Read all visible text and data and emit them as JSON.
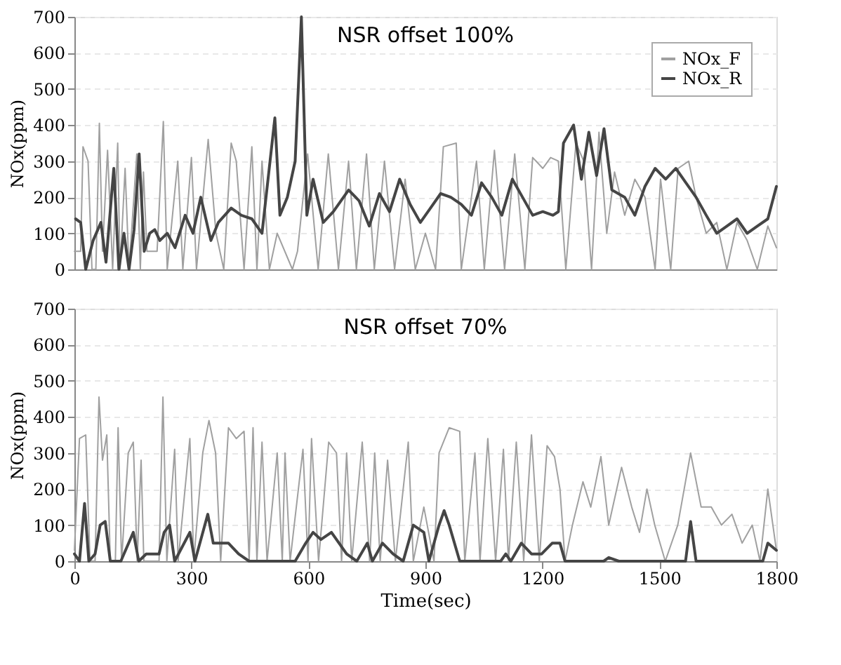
{
  "chart_data": [
    {
      "type": "line",
      "title": "NSR offset 100%",
      "ylabel": "NOx(ppm)",
      "xlim": [
        0,
        1800
      ],
      "xticks": [
        0,
        300,
        600,
        900,
        1200,
        1500,
        1800
      ],
      "ylim": [
        0,
        700
      ],
      "yticks": [
        0,
        100,
        200,
        300,
        400,
        500,
        600,
        700
      ],
      "grid": "y",
      "legend": "top right",
      "tick_labels": "y",
      "series": [
        {
          "name": "NOx_F",
          "color": "#a0a0a0",
          "x": [
            0,
            16,
            22,
            35,
            45,
            55,
            64,
            72,
            85,
            98,
            111,
            117,
            130,
            140,
            160,
            169,
            177,
            186,
            212,
            228,
            238,
            265,
            278,
            300,
            313,
            343,
            363,
            383,
            402,
            415,
            435,
            455,
            468,
            481,
            500,
            520,
            559,
            572,
            598,
            625,
            651,
            677,
            703,
            723,
            749,
            769,
            795,
            821,
            848,
            874,
            900,
            926,
            946,
            979,
            992,
            1031,
            1051,
            1077,
            1103,
            1129,
            1155,
            1175,
            1201,
            1221,
            1241,
            1260,
            1286,
            1306,
            1326,
            1345,
            1365,
            1385,
            1411,
            1437,
            1463,
            1489,
            1503,
            1529,
            1548,
            1575,
            1594,
            1620,
            1647,
            1673,
            1699,
            1725,
            1751,
            1778,
            1800
          ],
          "values": [
            50,
            50,
            340,
            300,
            0,
            0,
            405,
            50,
            330,
            0,
            350,
            0,
            280,
            0,
            320,
            0,
            270,
            50,
            50,
            410,
            0,
            300,
            0,
            310,
            0,
            360,
            100,
            0,
            350,
            300,
            0,
            340,
            0,
            300,
            0,
            100,
            0,
            50,
            320,
            0,
            320,
            0,
            300,
            0,
            320,
            0,
            300,
            0,
            250,
            0,
            100,
            0,
            340,
            350,
            0,
            300,
            0,
            330,
            0,
            320,
            0,
            310,
            280,
            310,
            300,
            0,
            350,
            300,
            0,
            380,
            100,
            270,
            150,
            250,
            200,
            0,
            250,
            0,
            280,
            300,
            200,
            100,
            130,
            0,
            130,
            80,
            0,
            120,
            60
          ]
        },
        {
          "name": "NOx_R",
          "color": "#454545",
          "x": [
            3,
            16,
            29,
            48,
            68,
            81,
            101,
            114,
            127,
            140,
            153,
            166,
            179,
            193,
            206,
            219,
            238,
            258,
            284,
            304,
            324,
            350,
            369,
            402,
            428,
            455,
            481,
            514,
            527,
            546,
            566,
            582,
            596,
            612,
            638,
            664,
            703,
            730,
            756,
            782,
            808,
            834,
            861,
            887,
            913,
            939,
            965,
            992,
            1018,
            1044,
            1070,
            1096,
            1123,
            1149,
            1175,
            1201,
            1227,
            1241,
            1254,
            1280,
            1300,
            1319,
            1339,
            1358,
            1378,
            1411,
            1437,
            1463,
            1489,
            1516,
            1542,
            1568,
            1594,
            1620,
            1647,
            1673,
            1699,
            1725,
            1751,
            1778,
            1800
          ],
          "values": [
            140,
            130,
            0,
            80,
            130,
            20,
            280,
            0,
            100,
            0,
            110,
            320,
            50,
            100,
            110,
            80,
            100,
            60,
            150,
            100,
            200,
            80,
            130,
            170,
            150,
            140,
            100,
            420,
            150,
            200,
            300,
            700,
            150,
            250,
            130,
            160,
            220,
            190,
            120,
            210,
            160,
            250,
            180,
            130,
            170,
            210,
            200,
            180,
            150,
            240,
            200,
            150,
            250,
            200,
            150,
            160,
            150,
            160,
            350,
            400,
            250,
            380,
            260,
            390,
            220,
            200,
            150,
            230,
            280,
            250,
            280,
            240,
            200,
            150,
            100,
            120,
            140,
            100,
            120,
            140,
            230
          ]
        }
      ]
    },
    {
      "type": "line",
      "title": "NSR offset 70%",
      "xlabel": "Time(sec)",
      "ylabel": "NOx(ppm)",
      "xlim": [
        0,
        1800
      ],
      "xticks": [
        0,
        300,
        600,
        900,
        1200,
        1500,
        1800
      ],
      "ylim": [
        0,
        700
      ],
      "yticks": [
        0,
        100,
        200,
        300,
        400,
        500,
        600,
        700
      ],
      "grid": "y",
      "legend": "top right",
      "series": [
        {
          "name": "NOx_F",
          "color": "#a0a0a0",
          "x": [
            0,
            13,
            29,
            40,
            53,
            63,
            72,
            83,
            92,
            105,
            112,
            121,
            138,
            151,
            161,
            171,
            178,
            217,
            227,
            237,
            257,
            266,
            296,
            306,
            329,
            345,
            362,
            375,
            395,
            415,
            435,
            448,
            458,
            468,
            481,
            494,
            520,
            533,
            540,
            553,
            586,
            599,
            608,
            626,
            652,
            672,
            685,
            698,
            711,
            738,
            757,
            770,
            784,
            803,
            823,
            856,
            869,
            896,
            922,
            935,
            961,
            988,
            1001,
            1027,
            1040,
            1060,
            1080,
            1100,
            1113,
            1133,
            1152,
            1172,
            1192,
            1212,
            1231,
            1245,
            1258,
            1277,
            1304,
            1324,
            1350,
            1370,
            1403,
            1429,
            1449,
            1468,
            1488,
            1515,
            1547,
            1580,
            1607,
            1633,
            1659,
            1686,
            1712,
            1738,
            1758,
            1778,
            1800
          ],
          "values": [
            30,
            340,
            350,
            0,
            0,
            455,
            280,
            350,
            0,
            0,
            370,
            0,
            300,
            330,
            0,
            280,
            0,
            0,
            455,
            0,
            310,
            0,
            340,
            0,
            300,
            390,
            300,
            0,
            370,
            340,
            360,
            0,
            370,
            0,
            330,
            0,
            300,
            0,
            300,
            0,
            310,
            0,
            340,
            0,
            330,
            300,
            0,
            300,
            0,
            330,
            0,
            300,
            0,
            280,
            0,
            330,
            0,
            150,
            0,
            300,
            370,
            360,
            0,
            300,
            0,
            340,
            0,
            310,
            0,
            330,
            0,
            350,
            0,
            320,
            290,
            200,
            0,
            100,
            220,
            150,
            290,
            100,
            260,
            150,
            80,
            200,
            100,
            0,
            100,
            300,
            150,
            150,
            100,
            130,
            50,
            100,
            0,
            200,
            30
          ]
        },
        {
          "name": "NOx_R",
          "color": "#454545",
          "x": [
            0,
            13,
            26,
            37,
            53,
            66,
            79,
            92,
            119,
            151,
            165,
            184,
            217,
            230,
            244,
            257,
            296,
            309,
            342,
            356,
            375,
            395,
            421,
            448,
            566,
            593,
            612,
            632,
            659,
            698,
            724,
            751,
            764,
            790,
            817,
            843,
            869,
            896,
            909,
            935,
            948,
            961,
            988,
            1093,
            1106,
            1119,
            1146,
            1172,
            1198,
            1225,
            1245,
            1258,
            1357,
            1370,
            1396,
            1567,
            1580,
            1594,
            1620,
            1765,
            1778,
            1800
          ],
          "values": [
            20,
            0,
            160,
            0,
            20,
            100,
            110,
            0,
            0,
            80,
            0,
            20,
            20,
            80,
            100,
            0,
            80,
            0,
            130,
            50,
            50,
            50,
            20,
            0,
            0,
            50,
            80,
            60,
            80,
            20,
            0,
            50,
            0,
            50,
            20,
            0,
            100,
            80,
            0,
            100,
            140,
            100,
            0,
            0,
            20,
            0,
            50,
            20,
            20,
            50,
            50,
            0,
            0,
            10,
            0,
            0,
            110,
            0,
            0,
            0,
            50,
            30
          ]
        }
      ]
    }
  ]
}
